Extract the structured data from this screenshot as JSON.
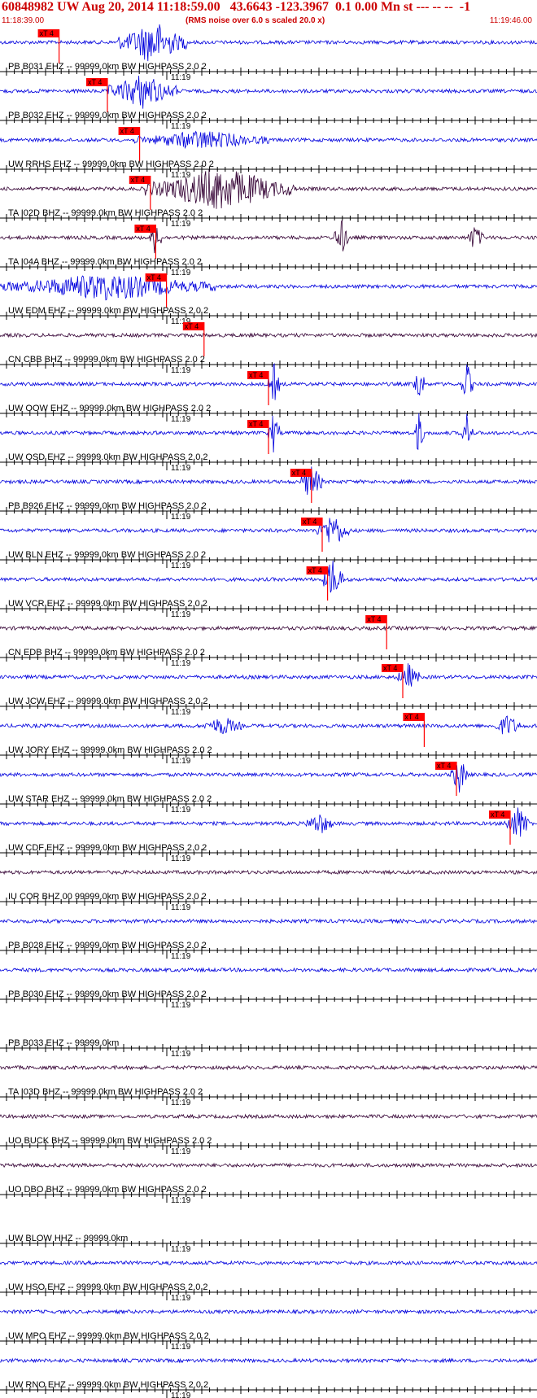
{
  "header": {
    "title": "60848982 UW Aug 20, 2014 11:18:59.00   43.6643 -123.3967  0.1 0.00 Mn st --- -- --  -1",
    "start_time": "11:18:39.00",
    "note": "(RMS noise over 6.0 s scaled 20.0 x)",
    "end_time": "11:19:46.00"
  },
  "colors": {
    "header": "#cc0000",
    "trace_blue": "#0000dd",
    "trace_dark": "#330033",
    "pick": "#ff0000",
    "axis": "#000000"
  },
  "chart_data": {
    "type": "line",
    "title": "60848982 UW Aug 20, 2014 11:18:59.00",
    "time_range": [
      "11:18:39.00",
      "11:19:46.00"
    ],
    "minute_mark": "11:19",
    "pick_label": "xT 4",
    "traces": [
      {
        "label": "PB B031 EHZ -- 99999.0km BW  HIGHPASS  2.0  2",
        "color": "blue",
        "pick": 0.11,
        "activity": [
          [
            0.22,
            0.35,
            1.0
          ]
        ]
      },
      {
        "label": "PB B032 EHZ -- 99999.0km BW  HIGHPASS  2.0  2",
        "color": "blue",
        "pick": 0.2,
        "activity": [
          [
            0.2,
            0.33,
            0.8
          ]
        ]
      },
      {
        "label": "UW RRHS EHZ -- 99999.0km BW  HIGHPASS  2.0  2",
        "color": "blue",
        "pick": 0.26,
        "activity": [
          [
            0.25,
            0.5,
            0.4
          ]
        ]
      },
      {
        "label": "TA I02D BHZ -- 99999.0km BW  HIGHPASS  2.0  2",
        "color": "dark",
        "pick": 0.28,
        "activity": [
          [
            0.27,
            0.55,
            1.0
          ]
        ]
      },
      {
        "label": "TA I04A BHZ -- 99999.0km BW  HIGHPASS  2.0  2",
        "color": "dark",
        "pick": 0.29,
        "activity": [
          [
            0.28,
            0.3,
            0.9
          ],
          [
            0.62,
            0.65,
            0.9
          ],
          [
            0.87,
            0.9,
            0.6
          ]
        ]
      },
      {
        "label": "UW EDM EHZ -- 99999.0km BW  HIGHPASS  2.0  2",
        "color": "blue",
        "pick": 0.31,
        "activity": [
          [
            0.0,
            0.4,
            0.6
          ]
        ]
      },
      {
        "label": "CN CBB BHZ -- 99999.0km BW  HIGHPASS  2.0  2",
        "color": "dark",
        "pick": 0.38,
        "activity": []
      },
      {
        "label": "UW OOW EHZ -- 99999.0km BW  HIGHPASS  2.0  2",
        "color": "blue",
        "pick": 0.5,
        "activity": [
          [
            0.5,
            0.52,
            1.0
          ],
          [
            0.77,
            0.79,
            1.0
          ],
          [
            0.86,
            0.88,
            1.0
          ]
        ]
      },
      {
        "label": "UW OSD EHZ -- 99999.0km BW  HIGHPASS  2.0  2",
        "color": "blue",
        "pick": 0.5,
        "activity": [
          [
            0.5,
            0.52,
            1.0
          ],
          [
            0.77,
            0.79,
            1.0
          ],
          [
            0.86,
            0.88,
            1.0
          ]
        ]
      },
      {
        "label": "PB B926 EHZ -- 99999.0km BW  HIGHPASS  2.0  2",
        "color": "blue",
        "pick": 0.58,
        "activity": [
          [
            0.56,
            0.6,
            0.9
          ]
        ]
      },
      {
        "label": "UW BLN EHZ -- 99999.0km BW  HIGHPASS  2.0  2",
        "color": "blue",
        "pick": 0.6,
        "activity": [
          [
            0.59,
            0.65,
            0.8
          ]
        ]
      },
      {
        "label": "UW VCR EHZ -- 99999.0km BW  HIGHPASS  2.0  2",
        "color": "blue",
        "pick": 0.61,
        "activity": [
          [
            0.6,
            0.64,
            1.0
          ]
        ]
      },
      {
        "label": "CN EDB BHZ -- 99999.0km BW  HIGHPASS  2.0  2",
        "color": "dark",
        "pick": 0.72,
        "activity": []
      },
      {
        "label": "UW JCW EHZ -- 99999.0km BW  HIGHPASS  2.0  2",
        "color": "blue",
        "pick": 0.75,
        "activity": [
          [
            0.74,
            0.78,
            0.6
          ]
        ]
      },
      {
        "label": "UW JORY EHZ -- 99999.0km BW  HIGHPASS  2.0  2",
        "color": "blue",
        "pick": 0.79,
        "activity": [
          [
            0.38,
            0.45,
            0.4
          ],
          [
            0.92,
            0.97,
            0.5
          ]
        ]
      },
      {
        "label": "UW STAR EHZ -- 99999.0km BW  HIGHPASS  2.0  2",
        "color": "blue",
        "pick": 0.85,
        "activity": [
          [
            0.84,
            0.87,
            0.9
          ]
        ]
      },
      {
        "label": "UW CDF EHZ -- 99999.0km BW  HIGHPASS  2.0  2",
        "color": "blue",
        "pick": 0.95,
        "activity": [
          [
            0.57,
            0.62,
            0.5
          ],
          [
            0.94,
            0.99,
            0.8
          ]
        ]
      },
      {
        "label": "IU COR BHZ 00 99999.0km BW  HIGHPASS  2.0  2",
        "color": "dark",
        "pick": null,
        "activity": []
      },
      {
        "label": "PB B028 EHZ -- 99999.0km BW  HIGHPASS  2.0  2",
        "color": "blue",
        "pick": null,
        "activity": []
      },
      {
        "label": "PB B030 EHZ -- 99999.0km BW  HIGHPASS  2.0  2",
        "color": "blue",
        "pick": null,
        "activity": []
      },
      {
        "label": "PB B033 EHZ -- 99999.0km",
        "color": "none",
        "pick": null,
        "activity": []
      },
      {
        "label": "TA I03D BHZ -- 99999.0km BW  HIGHPASS  2.0  2",
        "color": "dark",
        "pick": null,
        "activity": []
      },
      {
        "label": "UO BUCK BHZ -- 99999.0km BW  HIGHPASS  2.0  2",
        "color": "dark",
        "pick": null,
        "activity": []
      },
      {
        "label": "UO DBO BHZ -- 99999.0km BW  HIGHPASS  2.0  2",
        "color": "dark",
        "pick": null,
        "activity": []
      },
      {
        "label": "UW BLOW HHZ -- 99999.0km",
        "color": "none",
        "pick": null,
        "activity": []
      },
      {
        "label": "UW HSO EHZ -- 99999.0km BW  HIGHPASS  2.0  2",
        "color": "blue",
        "pick": null,
        "activity": []
      },
      {
        "label": "UW MPO EHZ -- 99999.0km BW  HIGHPASS  2.0  2",
        "color": "blue",
        "pick": null,
        "activity": []
      },
      {
        "label": "UW RNO EHZ -- 99999.0km BW  HIGHPASS  2.0  2",
        "color": "blue",
        "pick": null,
        "activity": []
      }
    ]
  }
}
